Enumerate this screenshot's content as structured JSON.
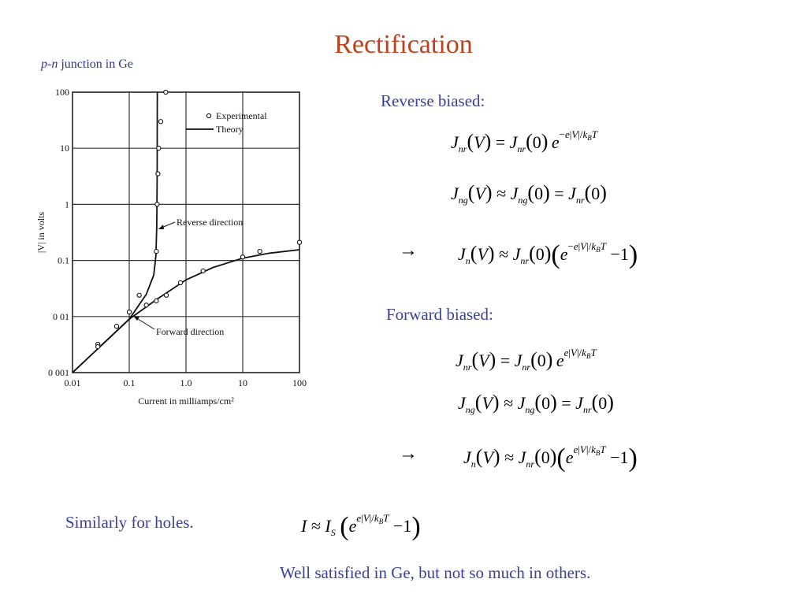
{
  "slide": {
    "title": "Rectification",
    "subtitle_italic": "p-n",
    "subtitle_rest": " junction in Ge",
    "reverse_heading": "Reverse biased:",
    "forward_heading": "Forward biased:",
    "holes_text": "Similarly for holes.",
    "footnote": "Well satisfied in Ge, but not so much in others.",
    "arrow": "→"
  },
  "chart_data": {
    "type": "scatter",
    "x_scale": "log",
    "y_scale": "log",
    "xlim": [
      0.01,
      100
    ],
    "ylim": [
      0.001,
      100
    ],
    "xlabel": "Current in milliamps/cm²",
    "ylabel": "|V| in volts",
    "x_ticks": [
      "0.01",
      "0.1",
      "1.0",
      "10",
      "100"
    ],
    "y_ticks": [
      "100",
      "10",
      "1",
      "0.1",
      "0 01",
      "0 001"
    ],
    "legend": {
      "placement": "top-right",
      "experimental": "Experimental",
      "theory": "Theory"
    },
    "annotations": {
      "reverse": "Reverse direction",
      "forward": "Forward direction"
    },
    "series": [
      {
        "name": "Experimental",
        "points": [
          [
            0.44,
            100
          ],
          [
            0.36,
            30
          ],
          [
            0.33,
            10
          ],
          [
            0.32,
            3.5
          ],
          [
            0.31,
            1.0
          ],
          [
            0.3,
            0.145
          ],
          [
            0.15,
            0.024
          ],
          [
            0.1,
            0.012
          ],
          [
            0.06,
            0.0067
          ],
          [
            0.028,
            0.0032
          ],
          [
            0.028,
            0.0029
          ],
          [
            0.2,
            0.016
          ],
          [
            0.3,
            0.019
          ],
          [
            0.45,
            0.024
          ],
          [
            0.8,
            0.04
          ],
          [
            2.0,
            0.065
          ],
          [
            10,
            0.115
          ],
          [
            20,
            0.145
          ],
          [
            100,
            0.21
          ]
        ]
      },
      {
        "name": "Theory",
        "reverse_curve": [
          [
            0.01,
            0.001
          ],
          [
            0.1,
            0.009
          ],
          [
            0.2,
            0.025
          ],
          [
            0.27,
            0.055
          ],
          [
            0.295,
            0.12
          ],
          [
            0.305,
            0.4
          ],
          [
            0.31,
            3
          ],
          [
            0.312,
            100
          ]
        ],
        "forward_curve": [
          [
            0.01,
            0.001
          ],
          [
            0.1,
            0.009
          ],
          [
            0.3,
            0.02
          ],
          [
            1,
            0.045
          ],
          [
            3,
            0.075
          ],
          [
            10,
            0.11
          ],
          [
            30,
            0.135
          ],
          [
            100,
            0.155
          ]
        ]
      }
    ]
  }
}
